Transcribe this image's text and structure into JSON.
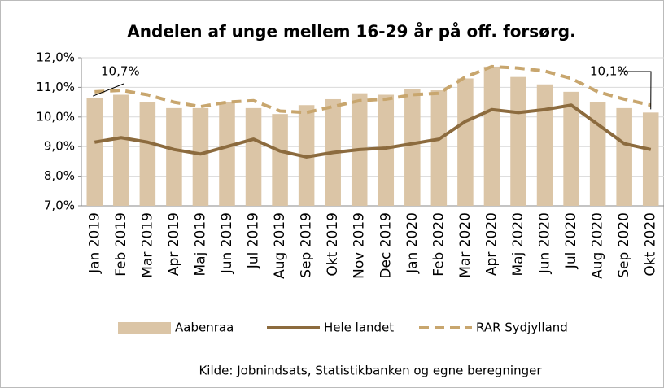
{
  "chart_data": {
    "type": "bar-line",
    "title": "Andelen af unge mellem 16-29 år på off. forsørg.",
    "source": "Kilde: Jobnindsats, Statistikbanken og egne beregninger",
    "categories": [
      "Jan 2019",
      "Feb 2019",
      "Mar 2019",
      "Apr 2019",
      "Maj 2019",
      "Jun 2019",
      "Jul 2019",
      "Aug 2019",
      "Sep 2019",
      "Okt 2019",
      "Nov 2019",
      "Dec 2019",
      "Jan 2020",
      "Feb 2020",
      "Mar 2020",
      "Apr 2020",
      "Maj 2020",
      "Jun 2020",
      "Jul 2020",
      "Aug 2020",
      "Sep 2020",
      "Okt 2020"
    ],
    "series": [
      {
        "name": "Aabenraa",
        "type": "bar",
        "color": "#dbc5a6",
        "values": [
          10.65,
          10.75,
          10.5,
          10.3,
          10.3,
          10.5,
          10.3,
          10.1,
          10.4,
          10.6,
          10.8,
          10.75,
          10.95,
          10.9,
          11.3,
          11.7,
          11.35,
          11.1,
          10.85,
          10.5,
          10.3,
          10.15
        ]
      },
      {
        "name": "Hele landet",
        "type": "line",
        "color": "#8c6b3e",
        "values": [
          9.15,
          9.3,
          9.15,
          8.9,
          8.75,
          9.0,
          9.25,
          8.85,
          8.65,
          8.8,
          8.9,
          8.95,
          9.1,
          9.25,
          9.85,
          10.25,
          10.15,
          10.25,
          10.4,
          9.75,
          9.1,
          8.9
        ]
      },
      {
        "name": "RAR Sydjylland",
        "type": "dashed",
        "color": "#c8a66e",
        "values": [
          10.85,
          10.9,
          10.75,
          10.5,
          10.35,
          10.5,
          10.55,
          10.2,
          10.15,
          10.35,
          10.55,
          10.6,
          10.75,
          10.8,
          11.35,
          11.7,
          11.65,
          11.55,
          11.3,
          10.85,
          10.6,
          10.4
        ]
      }
    ],
    "annotations": [
      {
        "text": "10,7%"
      },
      {
        "text": "10,1%"
      }
    ],
    "ylim": [
      7,
      12
    ],
    "yticks": [
      {
        "value": 7,
        "label": "7,0%"
      },
      {
        "value": 8,
        "label": "8,0%"
      },
      {
        "value": 9,
        "label": "9,0%"
      },
      {
        "value": 10,
        "label": "10,0%"
      },
      {
        "value": 11,
        "label": "11,0%"
      },
      {
        "value": 12,
        "label": "12,0%"
      }
    ],
    "grid": true
  }
}
